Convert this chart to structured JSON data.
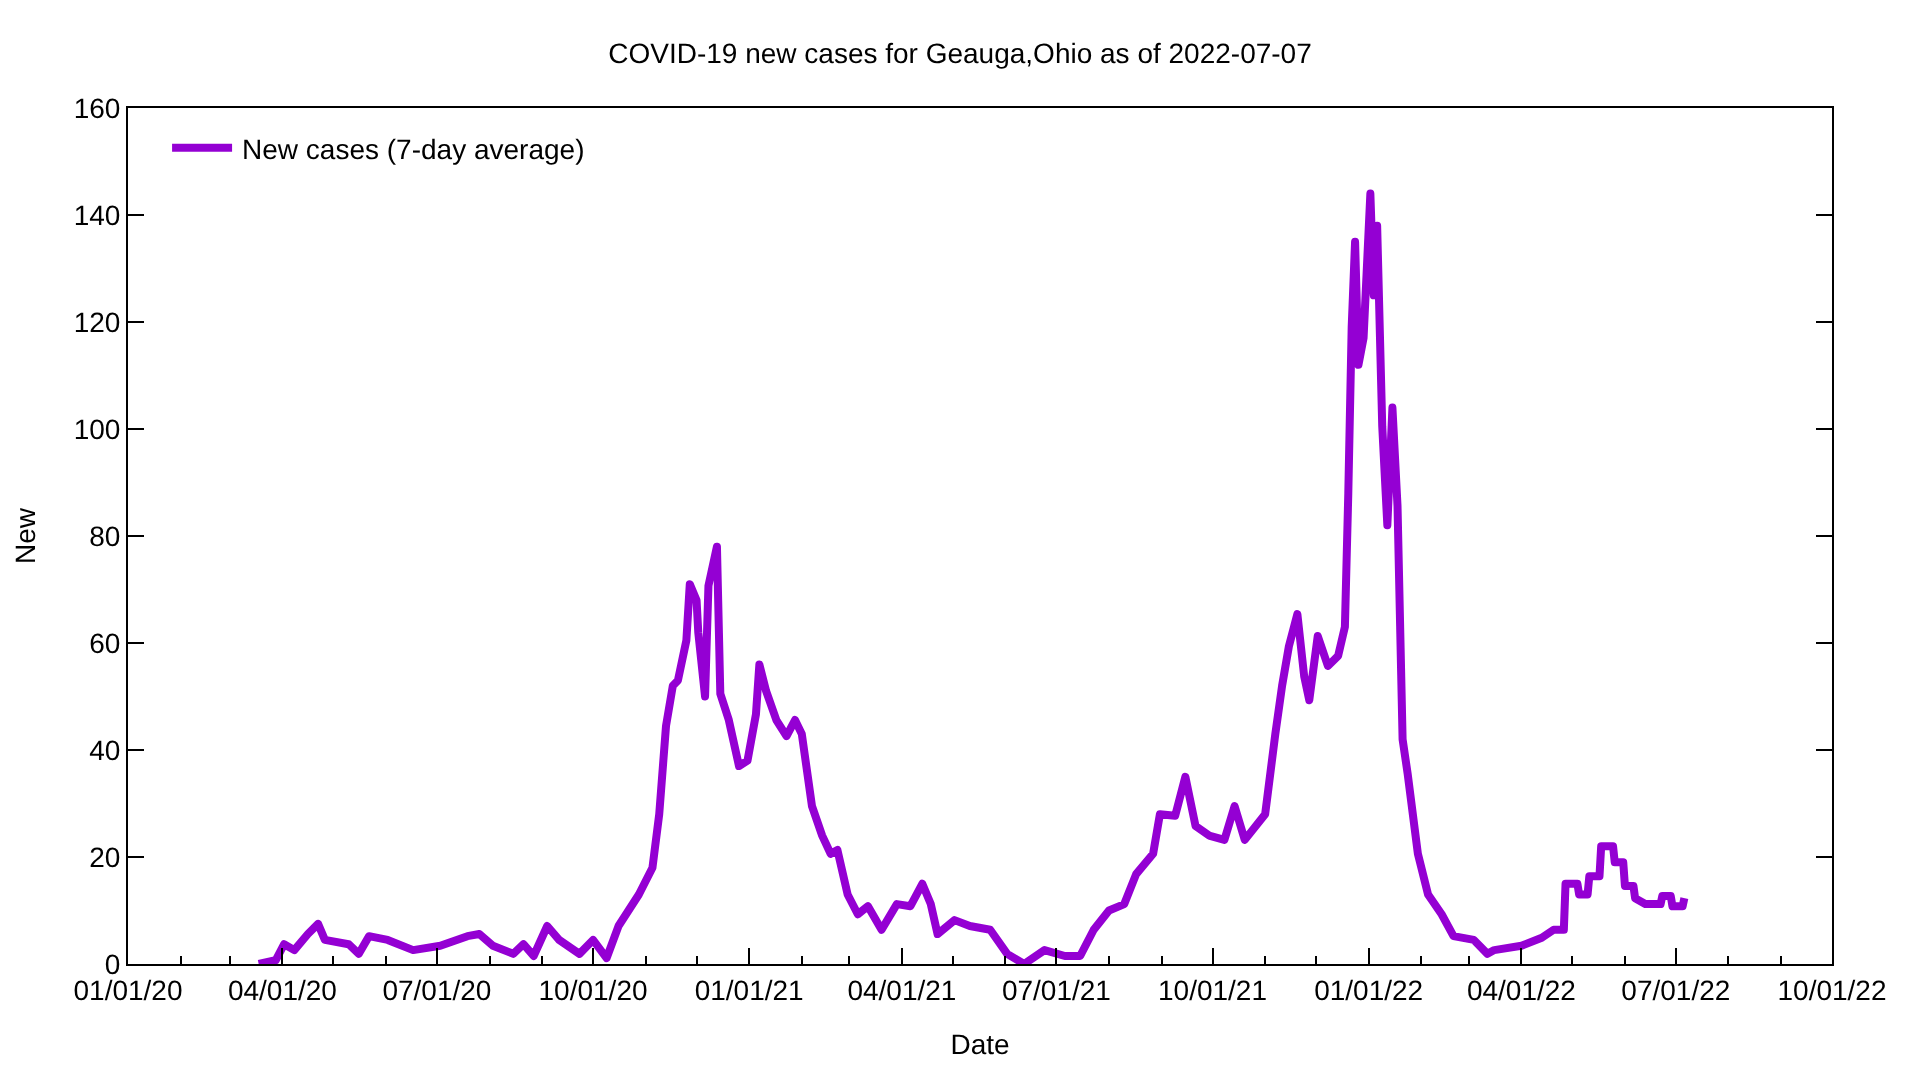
{
  "chart_data": {
    "type": "line",
    "title": "COVID-19 new cases for Geauga,Ohio as of 2022-07-07",
    "xlabel": "Date",
    "ylabel": "New",
    "x": [
      "2020-03-18",
      "2020-03-28",
      "2020-04-02",
      "2020-04-08",
      "2020-04-16",
      "2020-04-22",
      "2020-04-26",
      "2020-05-10",
      "2020-05-16",
      "2020-05-22",
      "2020-06-02",
      "2020-06-17",
      "2020-07-03",
      "2020-07-19",
      "2020-07-26",
      "2020-08-03",
      "2020-08-15",
      "2020-08-21",
      "2020-08-27",
      "2020-09-04",
      "2020-09-11",
      "2020-09-23",
      "2020-10-01",
      "2020-10-09",
      "2020-10-16",
      "2020-10-28",
      "2020-11-05",
      "2020-11-09",
      "2020-11-13",
      "2020-11-17",
      "2020-11-20",
      "2020-11-25",
      "2020-11-27",
      "2020-12-01",
      "2020-12-02",
      "2020-12-06",
      "2020-12-08",
      "2020-12-13",
      "2020-12-15",
      "2020-12-20",
      "2020-12-26",
      "2020-12-31",
      "2021-01-05",
      "2021-01-07",
      "2021-01-11",
      "2021-01-17",
      "2021-01-23",
      "2021-01-28",
      "2021-02-01",
      "2021-02-07",
      "2021-02-13",
      "2021-02-18",
      "2021-02-22",
      "2021-02-28",
      "2021-03-06",
      "2021-03-12",
      "2021-03-20",
      "2021-03-29",
      "2021-04-06",
      "2021-04-13",
      "2021-04-18",
      "2021-04-22",
      "2021-05-02",
      "2021-05-11",
      "2021-05-23",
      "2021-06-02",
      "2021-06-12",
      "2021-06-24",
      "2021-07-06",
      "2021-07-15",
      "2021-07-23",
      "2021-08-01",
      "2021-08-10",
      "2021-08-17",
      "2021-08-27",
      "2021-08-31",
      "2021-09-09",
      "2021-09-15",
      "2021-09-21",
      "2021-09-29",
      "2021-10-08",
      "2021-10-14",
      "2021-10-20",
      "2021-11-01",
      "2021-11-07",
      "2021-11-11",
      "2021-11-15",
      "2021-11-20",
      "2021-11-24",
      "2021-11-27",
      "2021-12-02",
      "2021-12-08",
      "2021-12-14",
      "2021-12-18",
      "2021-12-20",
      "2021-12-22",
      "2021-12-24",
      "2021-12-26",
      "2021-12-29",
      "2022-01-02",
      "2022-01-04",
      "2022-01-06",
      "2022-01-09",
      "2022-01-12",
      "2022-01-15",
      "2022-01-18",
      "2022-01-21",
      "2022-01-24",
      "2022-01-30",
      "2022-02-05",
      "2022-02-13",
      "2022-02-20",
      "2022-03-04",
      "2022-03-12",
      "2022-03-16",
      "2022-04-01",
      "2022-04-13",
      "2022-04-20",
      "2022-04-26",
      "2022-04-27",
      "2022-05-04",
      "2022-05-05",
      "2022-05-10",
      "2022-05-11",
      "2022-05-17",
      "2022-05-18",
      "2022-05-25",
      "2022-05-26",
      "2022-05-31",
      "2022-06-01",
      "2022-06-06",
      "2022-06-07",
      "2022-06-13",
      "2022-06-22",
      "2022-06-23",
      "2022-06-28",
      "2022-06-29",
      "2022-07-05",
      "2022-07-06"
    ],
    "series": [
      {
        "name": "New cases (7-day average)",
        "color": "#9400d3",
        "values": [
          0,
          0.7,
          3.7,
          2.6,
          5.6,
          7.5,
          4.5,
          3.7,
          1.9,
          5.2,
          4.5,
          2.6,
          3.4,
          5.2,
          5.6,
          3.4,
          1.9,
          3.7,
          1.5,
          7.1,
          4.5,
          1.9,
          4.5,
          1.1,
          7.1,
          13,
          18,
          28,
          44.5,
          52,
          53,
          60.5,
          71,
          68,
          62,
          50,
          70.7,
          78,
          50.5,
          45.6,
          37,
          38,
          46.7,
          56,
          51,
          45.6,
          42.6,
          45.6,
          43,
          29.5,
          24,
          20.6,
          21.3,
          13,
          9.3,
          10.8,
          6.4,
          11.2,
          10.8,
          15,
          11.2,
          5.6,
          8.2,
          7.1,
          6.4,
          1.9,
          0,
          2.6,
          1.5,
          1.5,
          6.4,
          10,
          11.2,
          16.8,
          20.6,
          28,
          27.7,
          35,
          25.8,
          24,
          23.2,
          29.5,
          23.2,
          28,
          43,
          52,
          59.4,
          65.4,
          53.8,
          49.3,
          61.3,
          55.7,
          57.6,
          63,
          88,
          119,
          135,
          112,
          117,
          144,
          125,
          138,
          100.5,
          82,
          104,
          85.6,
          42,
          35.5,
          20.6,
          13,
          9.3,
          5.2,
          4.5,
          1.9,
          2.6,
          3.4,
          4.9,
          6.4,
          6.4,
          15,
          15,
          13,
          13,
          16.4,
          16.4,
          22,
          22,
          19,
          19,
          14.6,
          14.6,
          12.3,
          11.2,
          11.2,
          12.7,
          12.7,
          10.8,
          10.8,
          12.3
        ]
      }
    ],
    "xlim": [
      "2020-01-01",
      "2022-10-01"
    ],
    "xticks": [
      {
        "value": "2020-01-01",
        "label": "01/01/20"
      },
      {
        "value": "2020-04-01",
        "label": "04/01/20"
      },
      {
        "value": "2020-07-01",
        "label": "07/01/20"
      },
      {
        "value": "2020-10-01",
        "label": "10/01/20"
      },
      {
        "value": "2021-01-01",
        "label": "01/01/21"
      },
      {
        "value": "2021-04-01",
        "label": "04/01/21"
      },
      {
        "value": "2021-07-01",
        "label": "07/01/21"
      },
      {
        "value": "2021-10-01",
        "label": "10/01/21"
      },
      {
        "value": "2022-01-01",
        "label": "01/01/22"
      },
      {
        "value": "2022-04-01",
        "label": "04/01/22"
      },
      {
        "value": "2022-07-01",
        "label": "07/01/22"
      },
      {
        "value": "2022-10-01",
        "label": "10/01/22"
      }
    ],
    "ylim": [
      0,
      160
    ],
    "yticks": [
      0,
      20,
      40,
      60,
      80,
      100,
      120,
      140,
      160
    ],
    "legend": "top left",
    "marker": "none",
    "line_style": "solid"
  }
}
